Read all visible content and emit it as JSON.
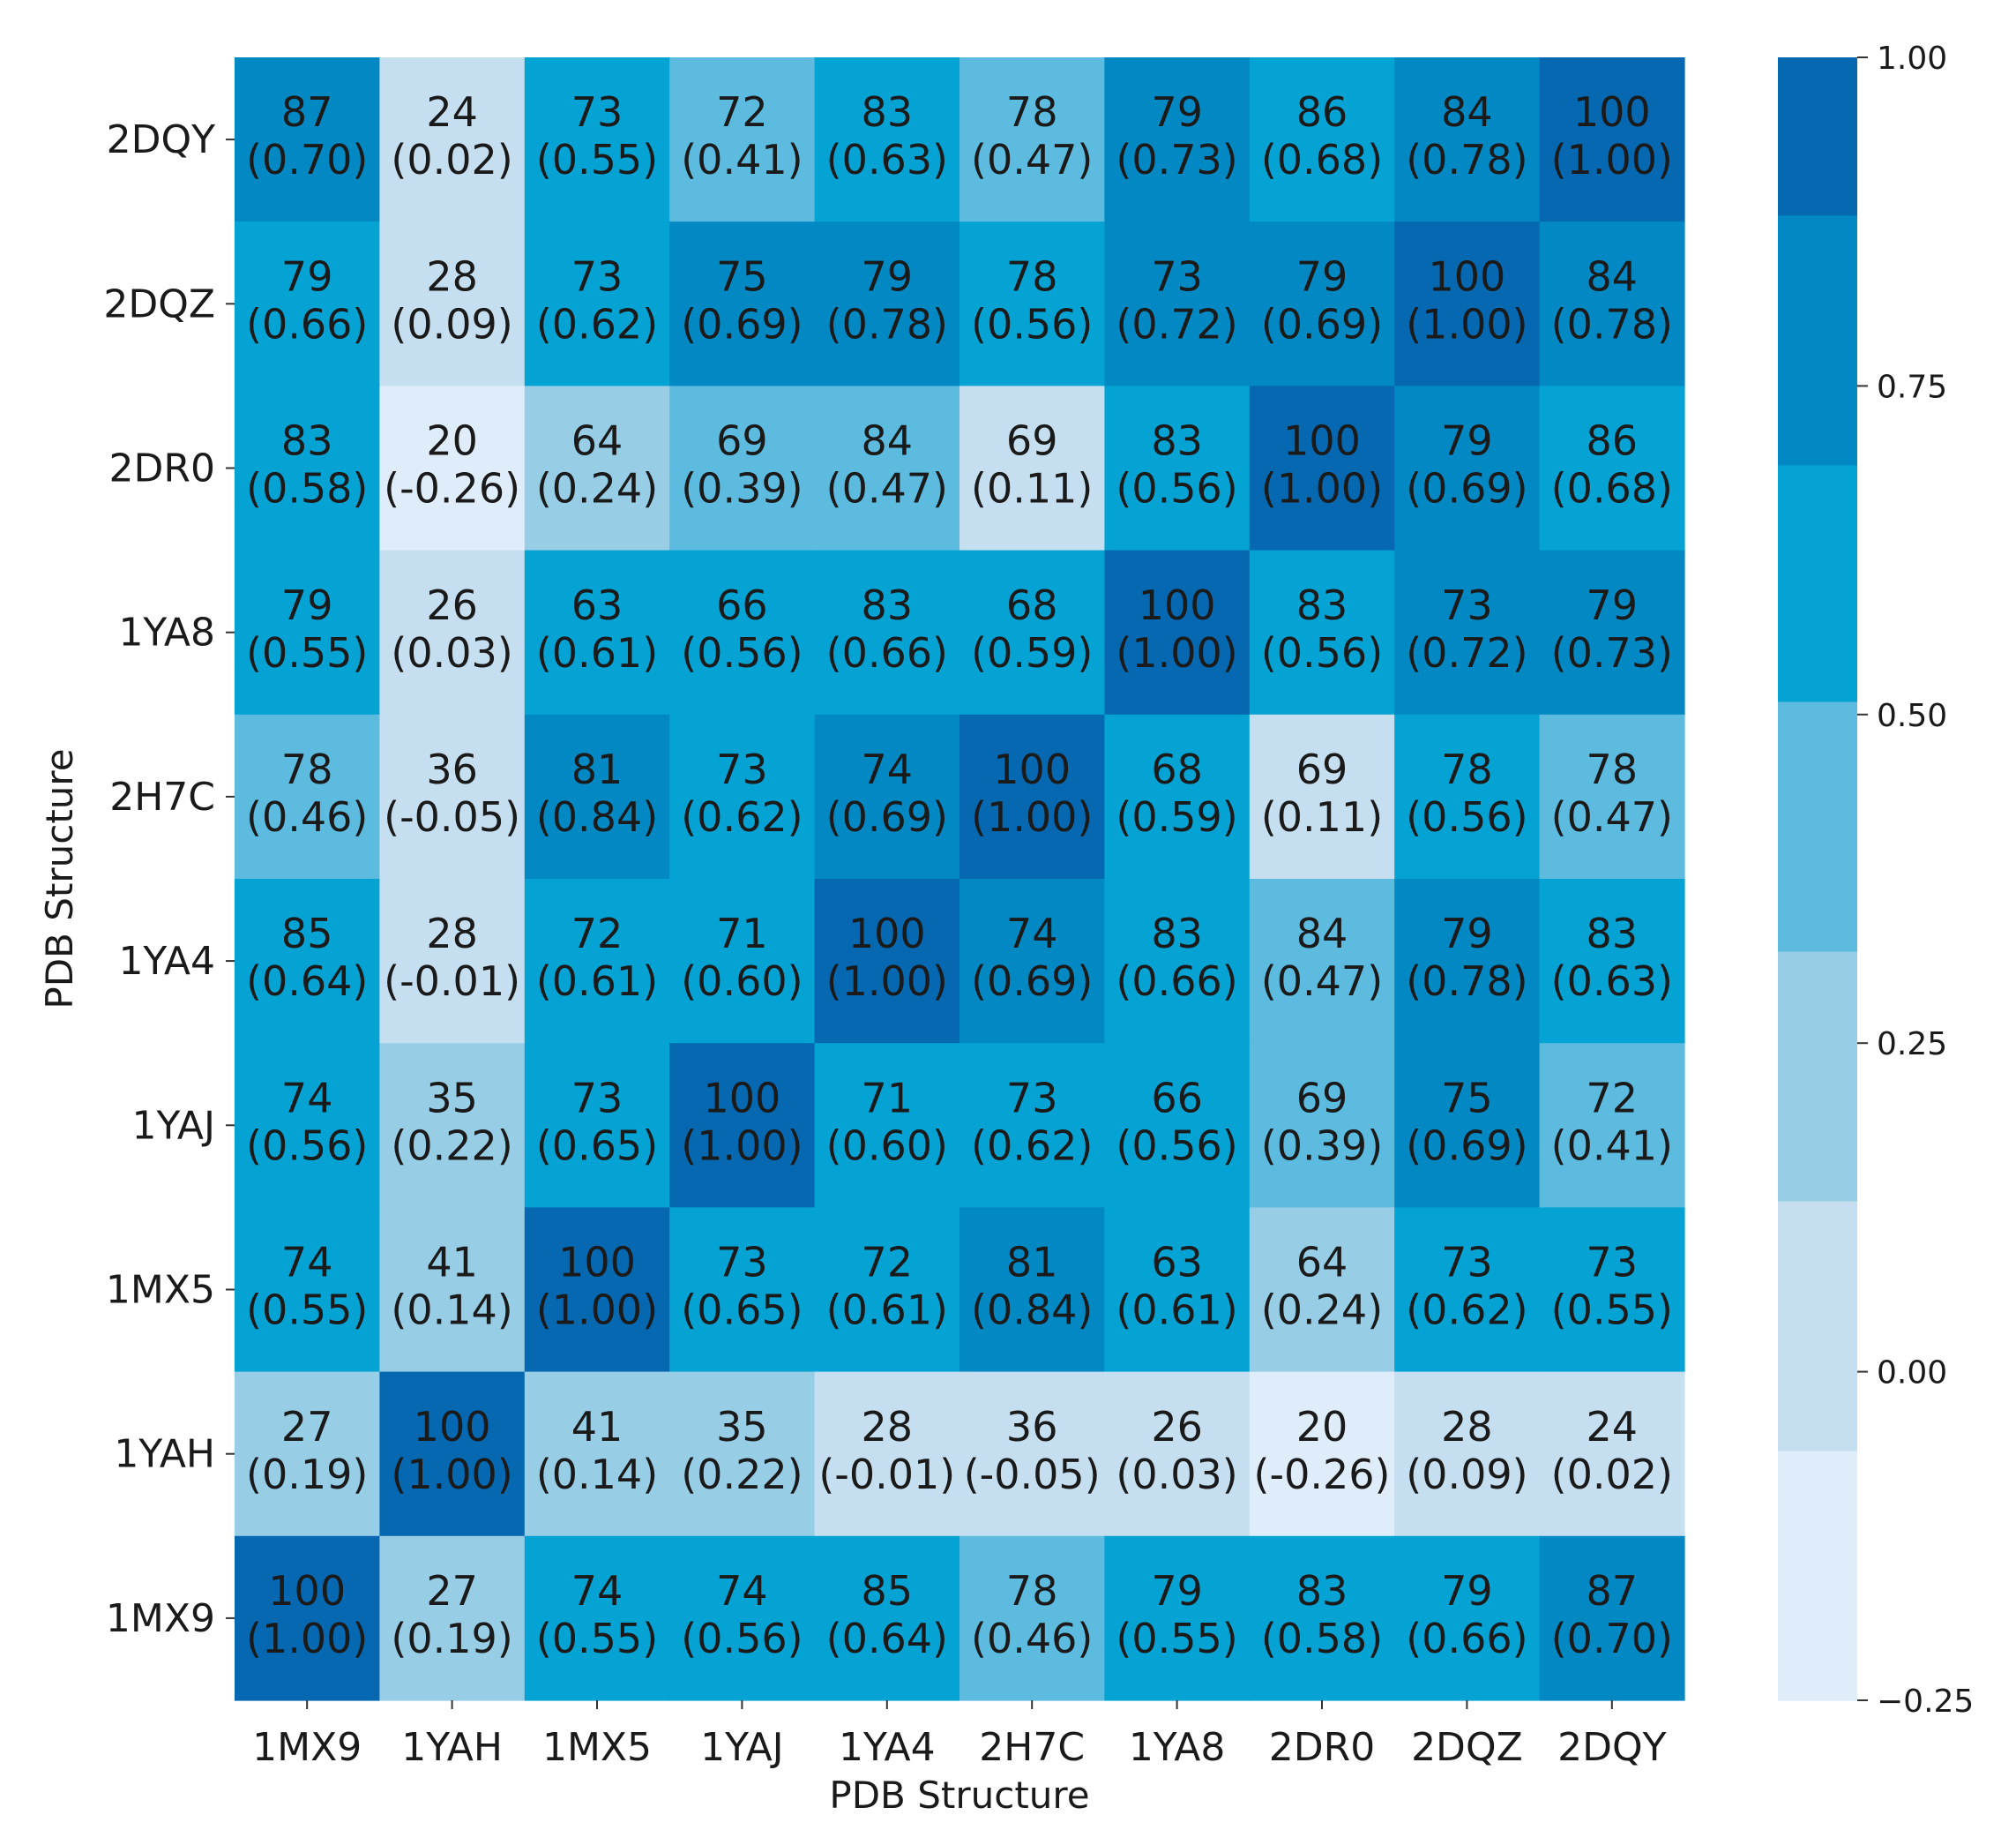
{
  "chart_data": {
    "type": "heatmap",
    "title": "",
    "xlabel": "PDB Structure",
    "ylabel": "PDB Structure",
    "x_categories": [
      "1MX9",
      "1YAH",
      "1MX5",
      "1YAJ",
      "1YA4",
      "2H7C",
      "1YA8",
      "2DR0",
      "2DQZ",
      "2DQY"
    ],
    "y_categories_top_to_bottom": [
      "2DQY",
      "2DQZ",
      "2DR0",
      "1YA8",
      "2H7C",
      "1YA4",
      "1YAJ",
      "1MX5",
      "1YAH",
      "1MX9"
    ],
    "identity_percent": [
      [
        87,
        24,
        73,
        72,
        83,
        78,
        79,
        86,
        84,
        100
      ],
      [
        79,
        28,
        73,
        75,
        79,
        78,
        73,
        79,
        100,
        84
      ],
      [
        83,
        20,
        64,
        69,
        84,
        69,
        83,
        100,
        79,
        86
      ],
      [
        79,
        26,
        63,
        66,
        83,
        68,
        100,
        83,
        73,
        79
      ],
      [
        78,
        36,
        81,
        73,
        74,
        100,
        68,
        69,
        78,
        78
      ],
      [
        85,
        28,
        72,
        71,
        100,
        74,
        83,
        84,
        79,
        83
      ],
      [
        74,
        35,
        73,
        100,
        71,
        73,
        66,
        69,
        75,
        72
      ],
      [
        74,
        41,
        100,
        73,
        72,
        81,
        63,
        64,
        73,
        73
      ],
      [
        27,
        100,
        41,
        35,
        28,
        36,
        26,
        20,
        28,
        24
      ],
      [
        100,
        27,
        74,
        74,
        85,
        78,
        79,
        83,
        79,
        87
      ]
    ],
    "correlation": [
      [
        0.7,
        0.02,
        0.55,
        0.41,
        0.63,
        0.47,
        0.73,
        0.68,
        0.78,
        1.0
      ],
      [
        0.66,
        0.09,
        0.62,
        0.69,
        0.78,
        0.56,
        0.72,
        0.69,
        1.0,
        0.78
      ],
      [
        0.58,
        -0.26,
        0.24,
        0.39,
        0.47,
        0.11,
        0.56,
        1.0,
        0.69,
        0.68
      ],
      [
        0.55,
        0.03,
        0.61,
        0.56,
        0.66,
        0.59,
        1.0,
        0.56,
        0.72,
        0.73
      ],
      [
        0.46,
        -0.05,
        0.84,
        0.62,
        0.69,
        1.0,
        0.59,
        0.11,
        0.56,
        0.47
      ],
      [
        0.64,
        -0.01,
        0.61,
        0.6,
        1.0,
        0.69,
        0.66,
        0.47,
        0.78,
        0.63
      ],
      [
        0.56,
        0.22,
        0.65,
        1.0,
        0.6,
        0.62,
        0.56,
        0.39,
        0.69,
        0.41
      ],
      [
        0.55,
        0.14,
        1.0,
        0.65,
        0.61,
        0.84,
        0.61,
        0.24,
        0.62,
        0.55
      ],
      [
        0.19,
        1.0,
        0.14,
        0.22,
        -0.01,
        -0.05,
        0.03,
        -0.26,
        0.09,
        0.02
      ],
      [
        1.0,
        0.19,
        0.55,
        0.56,
        0.64,
        0.46,
        0.55,
        0.58,
        0.66,
        0.7
      ]
    ],
    "colorbar": {
      "range": [
        -0.25,
        1.0
      ],
      "ticks": [
        -0.25,
        0.0,
        0.25,
        0.5,
        0.75,
        1.0
      ],
      "tick_labels": [
        "−0.25",
        "0.00",
        "0.25",
        "0.50",
        "0.75",
        "1.00"
      ],
      "bins": [
        {
          "from": -0.25,
          "to": -0.06,
          "color": "#deedf9"
        },
        {
          "from": -0.06,
          "to": 0.13,
          "color": "#c6dff0"
        },
        {
          "from": 0.13,
          "to": 0.32,
          "color": "#98cde6"
        },
        {
          "from": 0.32,
          "to": 0.51,
          "color": "#5cbbdf"
        },
        {
          "from": 0.51,
          "to": 0.69,
          "color": "#05a3d3"
        },
        {
          "from": 0.69,
          "to": 0.88,
          "color": "#0289c4"
        },
        {
          "from": 0.88,
          "to": 1.0,
          "color": "#0568b0"
        }
      ]
    }
  }
}
